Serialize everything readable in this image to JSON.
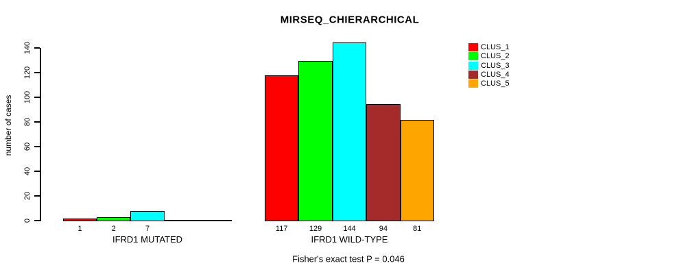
{
  "chart_data": {
    "type": "bar",
    "title": "MIRSEQ_CHIERARCHICAL",
    "ylabel": "number of cases",
    "xlabel": "",
    "ylim": [
      0,
      140
    ],
    "yticks": [
      0,
      20,
      40,
      60,
      80,
      100,
      120,
      140
    ],
    "grid": false,
    "groups": [
      {
        "label": "IFRD1 MUTATED",
        "values": [
          1,
          2,
          7,
          0,
          0
        ],
        "bar_labels": [
          "1",
          "2",
          "7",
          "",
          ""
        ]
      },
      {
        "label": "IFRD1 WILD-TYPE",
        "values": [
          117,
          129,
          144,
          94,
          81
        ],
        "bar_labels": [
          "117",
          "129",
          "144",
          "94",
          "81"
        ]
      }
    ],
    "series_colors": [
      "#FF0000",
      "#00FF00",
      "#00FFFF",
      "#A52A2A",
      "#FFA500"
    ],
    "legend": [
      {
        "label": "CLUS_1",
        "color": "#FF0000"
      },
      {
        "label": "CLUS_2",
        "color": "#00FF00"
      },
      {
        "label": "CLUS_3",
        "color": "#00FFFF"
      },
      {
        "label": "CLUS_4",
        "color": "#A52A2A"
      },
      {
        "label": "CLUS_5",
        "color": "#FFA500"
      }
    ],
    "legend_position": "top-right",
    "footer": "Fisher's exact test P = 0.046"
  }
}
